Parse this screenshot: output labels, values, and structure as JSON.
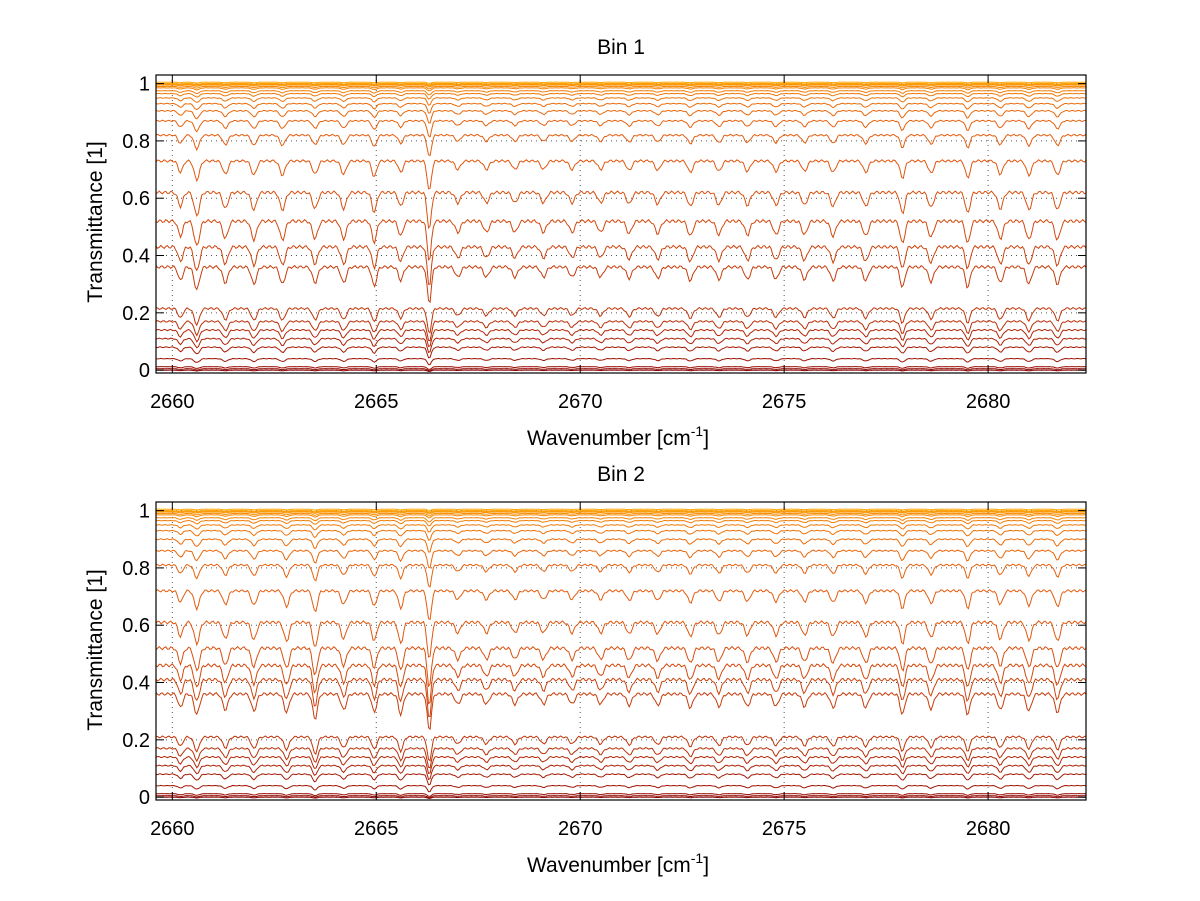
{
  "chart_data": [
    {
      "type": "line",
      "title": "Bin 1",
      "xlabel": "Wavenumber [cm",
      "xlabel_sup": "-1",
      "xlabel_end": "]",
      "ylabel": "Transmittance [1]",
      "xlim": [
        2659.6,
        2682.4
      ],
      "ylim": [
        -0.01,
        1.03
      ],
      "xticks": [
        2660,
        2665,
        2670,
        2675,
        2680
      ],
      "xticklabels": [
        "2660",
        "2665",
        "2670",
        "2675",
        "2680"
      ],
      "yticks": [
        0,
        0.2,
        0.4,
        0.6,
        0.8,
        1
      ],
      "yticklabels": [
        "0",
        "0.2",
        "0.4",
        "0.6",
        "0.8",
        "1"
      ],
      "grid": true,
      "series_baselines": [
        0.0,
        0.005,
        0.012,
        0.04,
        0.08,
        0.11,
        0.14,
        0.17,
        0.215,
        0.36,
        0.43,
        0.52,
        0.62,
        0.73,
        0.82,
        0.87,
        0.905,
        0.93,
        0.95,
        0.965,
        0.975,
        0.985,
        0.99,
        0.995,
        0.998,
        1.0,
        1.0,
        1.005
      ],
      "colors": [
        "#8b0000",
        "#e35a10",
        "#ffa500"
      ],
      "absorption_lines": [
        {
          "x": 2660.2,
          "depth": 0.6,
          "width": 0.08
        },
        {
          "x": 2660.6,
          "depth": 1.0,
          "width": 0.09
        },
        {
          "x": 2661.3,
          "depth": 0.7,
          "width": 0.09
        },
        {
          "x": 2662.0,
          "depth": 0.75,
          "width": 0.09
        },
        {
          "x": 2662.7,
          "depth": 0.75,
          "width": 0.09
        },
        {
          "x": 2663.5,
          "depth": 0.7,
          "width": 0.09
        },
        {
          "x": 2664.2,
          "depth": 0.7,
          "width": 0.09
        },
        {
          "x": 2664.95,
          "depth": 0.85,
          "width": 0.08
        },
        {
          "x": 2665.6,
          "depth": 0.6,
          "width": 0.08
        },
        {
          "x": 2666.3,
          "depth": 1.6,
          "width": 0.07
        },
        {
          "x": 2667.0,
          "depth": 0.45,
          "width": 0.09
        },
        {
          "x": 2667.7,
          "depth": 0.45,
          "width": 0.09
        },
        {
          "x": 2668.4,
          "depth": 0.45,
          "width": 0.09
        },
        {
          "x": 2669.1,
          "depth": 0.45,
          "width": 0.09
        },
        {
          "x": 2669.8,
          "depth": 0.45,
          "width": 0.09
        },
        {
          "x": 2670.5,
          "depth": 0.45,
          "width": 0.09
        },
        {
          "x": 2671.2,
          "depth": 0.5,
          "width": 0.09
        },
        {
          "x": 2671.9,
          "depth": 0.5,
          "width": 0.09
        },
        {
          "x": 2672.7,
          "depth": 0.6,
          "width": 0.09
        },
        {
          "x": 2673.4,
          "depth": 0.55,
          "width": 0.09
        },
        {
          "x": 2674.1,
          "depth": 0.55,
          "width": 0.09
        },
        {
          "x": 2674.8,
          "depth": 0.55,
          "width": 0.09
        },
        {
          "x": 2675.5,
          "depth": 0.55,
          "width": 0.09
        },
        {
          "x": 2676.2,
          "depth": 0.6,
          "width": 0.09
        },
        {
          "x": 2677.0,
          "depth": 0.6,
          "width": 0.09
        },
        {
          "x": 2677.9,
          "depth": 0.9,
          "width": 0.08
        },
        {
          "x": 2678.6,
          "depth": 0.65,
          "width": 0.09
        },
        {
          "x": 2679.5,
          "depth": 0.9,
          "width": 0.08
        },
        {
          "x": 2680.3,
          "depth": 0.7,
          "width": 0.09
        },
        {
          "x": 2681.0,
          "depth": 0.75,
          "width": 0.09
        },
        {
          "x": 2681.7,
          "depth": 0.75,
          "width": 0.09
        }
      ]
    },
    {
      "type": "line",
      "title": "Bin 2",
      "xlabel": "Wavenumber [cm",
      "xlabel_sup": "-1",
      "xlabel_end": "]",
      "ylabel": "Transmittance [1]",
      "xlim": [
        2659.6,
        2682.4
      ],
      "ylim": [
        -0.01,
        1.03
      ],
      "xticks": [
        2660,
        2665,
        2670,
        2675,
        2680
      ],
      "xticklabels": [
        "2660",
        "2665",
        "2670",
        "2675",
        "2680"
      ],
      "yticks": [
        0,
        0.2,
        0.4,
        0.6,
        0.8,
        1
      ],
      "yticklabels": [
        "0",
        "0.2",
        "0.4",
        "0.6",
        "0.8",
        "1"
      ],
      "grid": true,
      "series_baselines": [
        0.0,
        0.005,
        0.012,
        0.04,
        0.08,
        0.11,
        0.14,
        0.17,
        0.21,
        0.36,
        0.41,
        0.46,
        0.52,
        0.61,
        0.72,
        0.81,
        0.86,
        0.9,
        0.93,
        0.95,
        0.965,
        0.975,
        0.985,
        0.99,
        0.995,
        0.998,
        1.0,
        1.005
      ],
      "colors": [
        "#8b0000",
        "#e35a10",
        "#ffa500"
      ],
      "absorption_lines": [
        {
          "x": 2660.2,
          "depth": 0.6,
          "width": 0.08
        },
        {
          "x": 2660.6,
          "depth": 0.9,
          "width": 0.09
        },
        {
          "x": 2661.3,
          "depth": 0.7,
          "width": 0.09
        },
        {
          "x": 2662.0,
          "depth": 0.75,
          "width": 0.09
        },
        {
          "x": 2662.8,
          "depth": 0.8,
          "width": 0.09
        },
        {
          "x": 2663.5,
          "depth": 1.1,
          "width": 0.08
        },
        {
          "x": 2664.2,
          "depth": 0.7,
          "width": 0.09
        },
        {
          "x": 2664.95,
          "depth": 0.8,
          "width": 0.08
        },
        {
          "x": 2665.6,
          "depth": 0.9,
          "width": 0.08
        },
        {
          "x": 2666.3,
          "depth": 1.6,
          "width": 0.07
        },
        {
          "x": 2667.0,
          "depth": 0.45,
          "width": 0.09
        },
        {
          "x": 2667.7,
          "depth": 0.45,
          "width": 0.09
        },
        {
          "x": 2668.4,
          "depth": 0.45,
          "width": 0.09
        },
        {
          "x": 2669.1,
          "depth": 0.45,
          "width": 0.09
        },
        {
          "x": 2669.8,
          "depth": 0.45,
          "width": 0.09
        },
        {
          "x": 2670.5,
          "depth": 0.45,
          "width": 0.09
        },
        {
          "x": 2671.2,
          "depth": 0.5,
          "width": 0.09
        },
        {
          "x": 2671.9,
          "depth": 0.5,
          "width": 0.09
        },
        {
          "x": 2672.7,
          "depth": 0.6,
          "width": 0.09
        },
        {
          "x": 2673.4,
          "depth": 0.55,
          "width": 0.09
        },
        {
          "x": 2674.1,
          "depth": 0.55,
          "width": 0.09
        },
        {
          "x": 2674.8,
          "depth": 0.55,
          "width": 0.09
        },
        {
          "x": 2675.5,
          "depth": 0.55,
          "width": 0.09
        },
        {
          "x": 2676.2,
          "depth": 0.6,
          "width": 0.09
        },
        {
          "x": 2677.0,
          "depth": 0.6,
          "width": 0.09
        },
        {
          "x": 2677.9,
          "depth": 0.9,
          "width": 0.08
        },
        {
          "x": 2678.6,
          "depth": 0.65,
          "width": 0.09
        },
        {
          "x": 2679.5,
          "depth": 0.9,
          "width": 0.08
        },
        {
          "x": 2680.3,
          "depth": 0.7,
          "width": 0.09
        },
        {
          "x": 2681.0,
          "depth": 0.75,
          "width": 0.09
        },
        {
          "x": 2681.7,
          "depth": 0.8,
          "width": 0.09
        }
      ]
    }
  ]
}
